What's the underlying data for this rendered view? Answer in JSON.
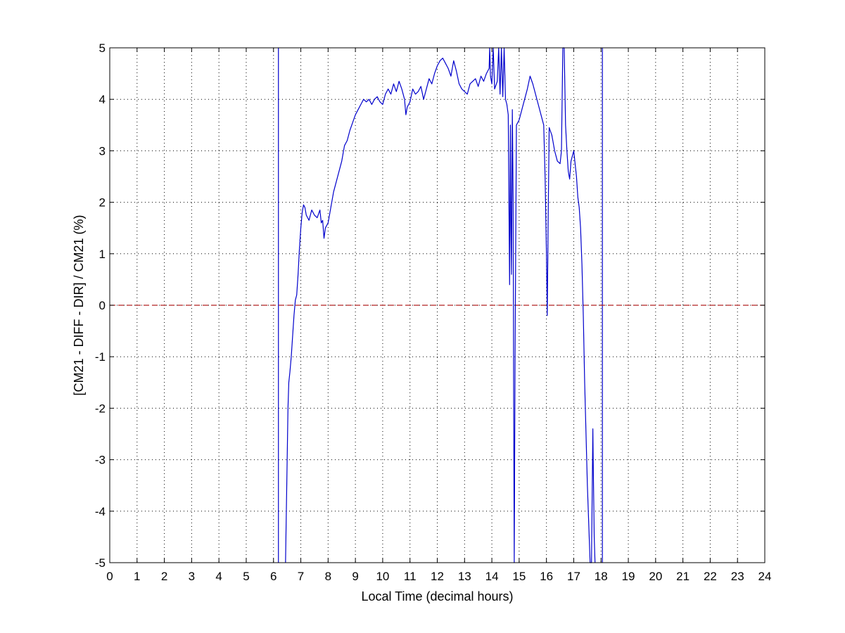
{
  "chart_data": {
    "type": "line",
    "title": "",
    "xlabel": "Local Time (decimal hours)",
    "ylabel": "[CM21 - DIFF - DIR] / CM21 (%)",
    "xlim": [
      0,
      24
    ],
    "ylim": [
      -5,
      5
    ],
    "xticks": [
      0,
      1,
      2,
      3,
      4,
      5,
      6,
      7,
      8,
      9,
      10,
      11,
      12,
      13,
      14,
      15,
      16,
      17,
      18,
      19,
      20,
      21,
      22,
      23,
      24
    ],
    "yticks": [
      -5,
      -4,
      -3,
      -2,
      -1,
      0,
      1,
      2,
      3,
      4,
      5
    ],
    "xtick_labels": [
      "0",
      "1",
      "2",
      "3",
      "4",
      "5",
      "6",
      "7",
      "8",
      "9",
      "10",
      "11",
      "12",
      "13",
      "14",
      "15",
      "16",
      "17",
      "18",
      "19",
      "20",
      "21",
      "22",
      "23",
      "24"
    ],
    "ytick_labels": [
      "-5",
      "-4",
      "-3",
      "-2",
      "-1",
      "0",
      "1",
      "2",
      "3",
      "4",
      "5"
    ],
    "grid": true,
    "grid_style": "dotted",
    "series_color": "#0000cc",
    "reference_line_color": "#b22222",
    "reference_line": {
      "y": 0,
      "style": "dashed"
    },
    "vertical_lines": [
      6.18,
      18.05
    ],
    "series": [
      {
        "x": [
          6.44,
          6.47,
          6.5,
          6.53,
          6.56,
          6.6,
          6.65,
          6.7,
          6.75,
          6.8,
          6.85,
          6.9,
          6.95,
          7.0,
          7.05,
          7.1,
          7.15,
          7.2,
          7.3,
          7.4,
          7.5,
          7.6,
          7.7,
          7.75,
          7.8,
          7.85,
          7.9,
          8.0,
          8.1,
          8.2,
          8.3,
          8.4,
          8.5,
          8.6,
          8.7,
          8.8,
          8.9,
          9.0,
          9.1,
          9.2,
          9.3,
          9.4,
          9.5,
          9.6,
          9.7,
          9.8,
          9.9,
          10.0,
          10.1,
          10.2,
          10.3,
          10.4,
          10.5,
          10.6,
          10.7,
          10.8,
          10.85,
          10.9,
          11.0,
          11.1,
          11.2,
          11.3,
          11.4,
          11.5,
          11.6,
          11.7,
          11.8,
          11.9,
          12.0,
          12.1,
          12.2,
          12.3,
          12.4,
          12.5,
          12.6,
          12.7,
          12.8,
          12.9,
          13.0,
          13.1,
          13.2,
          13.3,
          13.4,
          13.5,
          13.6,
          13.7,
          13.8,
          13.9,
          13.92,
          13.95,
          14.0,
          14.05,
          14.1,
          14.2,
          14.25,
          14.3,
          14.35,
          14.4,
          14.45,
          14.5,
          14.55,
          14.6,
          14.65,
          14.68,
          14.7,
          14.72,
          14.75,
          14.78,
          14.8,
          14.82,
          14.85,
          14.9,
          15.0,
          15.1,
          15.2,
          15.3,
          15.4,
          15.5,
          15.6,
          15.7,
          15.8,
          15.9,
          15.95,
          16.0,
          16.03,
          16.06,
          16.1,
          16.2,
          16.3,
          16.4,
          16.5,
          16.55,
          16.6,
          16.65,
          16.7,
          16.75,
          16.8,
          16.85,
          16.9,
          17.0,
          17.1,
          17.15,
          17.2,
          17.25,
          17.3,
          17.35,
          17.4,
          17.45,
          17.5,
          17.6,
          17.65,
          17.7,
          17.72,
          17.75,
          17.78
        ],
        "y": [
          -5.0,
          -4.0,
          -3.0,
          -2.0,
          -1.5,
          -1.3,
          -1.0,
          -0.6,
          -0.2,
          0.1,
          0.2,
          0.6,
          1.1,
          1.5,
          1.8,
          1.95,
          1.9,
          1.75,
          1.65,
          1.85,
          1.75,
          1.7,
          1.85,
          1.6,
          1.65,
          1.3,
          1.5,
          1.6,
          1.9,
          2.2,
          2.4,
          2.6,
          2.8,
          3.1,
          3.2,
          3.4,
          3.55,
          3.7,
          3.8,
          3.9,
          4.0,
          3.95,
          4.0,
          3.9,
          4.0,
          4.05,
          3.95,
          3.9,
          4.1,
          4.2,
          4.1,
          4.3,
          4.15,
          4.35,
          4.2,
          4.0,
          3.7,
          3.85,
          3.95,
          4.2,
          4.1,
          4.15,
          4.25,
          4.0,
          4.2,
          4.4,
          4.3,
          4.5,
          4.65,
          4.75,
          4.8,
          4.7,
          4.6,
          4.45,
          4.75,
          4.55,
          4.3,
          4.2,
          4.15,
          4.1,
          4.3,
          4.35,
          4.4,
          4.25,
          4.45,
          4.35,
          4.5,
          4.6,
          5.0,
          4.45,
          4.3,
          5.0,
          4.2,
          4.35,
          5.0,
          4.1,
          5.0,
          4.05,
          5.0,
          4.0,
          3.9,
          3.7,
          0.4,
          3.5,
          1.5,
          0.6,
          3.8,
          2.0,
          -2.0,
          -5.0,
          -1.0,
          3.5,
          3.6,
          3.8,
          4.0,
          4.2,
          4.45,
          4.3,
          4.1,
          3.9,
          3.7,
          3.5,
          2.5,
          1.0,
          -0.2,
          1.5,
          3.45,
          3.3,
          3.0,
          2.8,
          2.75,
          3.0,
          5.0,
          5.0,
          3.5,
          3.0,
          2.6,
          2.45,
          2.8,
          3.0,
          2.5,
          2.1,
          1.9,
          1.5,
          0.8,
          -0.2,
          -1.5,
          -2.5,
          -3.5,
          -5.0,
          -5.0,
          -2.4,
          -3.3,
          -4.5,
          -5.0
        ]
      }
    ]
  }
}
